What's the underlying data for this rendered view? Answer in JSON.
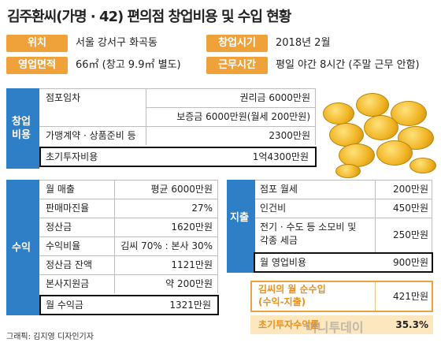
{
  "title": "김주환씨(가명 · 42) 편의점 창업비용 및 수입 현황",
  "info": {
    "location_label": "위치",
    "location_value": "서울 강서구 화곡동",
    "start_label": "창업시기",
    "start_value": "2018년 2월",
    "area_label": "영업면적",
    "area_value": "66㎡ (창고 9.9㎡ 별도)",
    "hours_label": "근무시간",
    "hours_value": "평일 야간 8시간 (주말 근무 안함)"
  },
  "startup": {
    "section_label": "창업\n비용",
    "rows": [
      {
        "label": "점포임차",
        "value": "권리금 6000만원"
      },
      {
        "label": "",
        "value": "보증금 6000만원(월세 200만원)"
      },
      {
        "label": "가맹계약 · 상품준비 등",
        "value": "2300만원"
      }
    ],
    "total_label": "초기투자비용",
    "total_value": "1억4300만원"
  },
  "income": {
    "section_label": "수익",
    "rows": [
      {
        "label": "월 매출",
        "value": "평균 6000만원"
      },
      {
        "label": "판매마진율",
        "value": "27%"
      },
      {
        "label": "정산금",
        "value": "1620만원"
      },
      {
        "label": "수익비율",
        "value": "김씨 70% : 본사 30%"
      },
      {
        "label": "정산금 잔액",
        "value": "1121만원"
      },
      {
        "label": "본사지원금",
        "value": "약 200만원"
      }
    ],
    "total_label": "월 수익금",
    "total_value": "1321만원"
  },
  "expense": {
    "section_label": "지출",
    "rows": [
      {
        "label": "점포 월세",
        "value": "200만원"
      },
      {
        "label": "인건비",
        "value": "450만원"
      },
      {
        "label": "전기 · 수도 등 소모비 및\n각종 세금",
        "value": "250만원"
      }
    ],
    "total_label": "월 영업비용",
    "total_value": "900만원"
  },
  "net": {
    "label": "김씨의 월 순수입\n(수익-지출)",
    "value": "421만원"
  },
  "roi": {
    "label": "초기투자수익률",
    "value": "35.3%"
  },
  "credit": "그래픽: 김지영 디자인기자",
  "watermark": "머니투데이"
}
